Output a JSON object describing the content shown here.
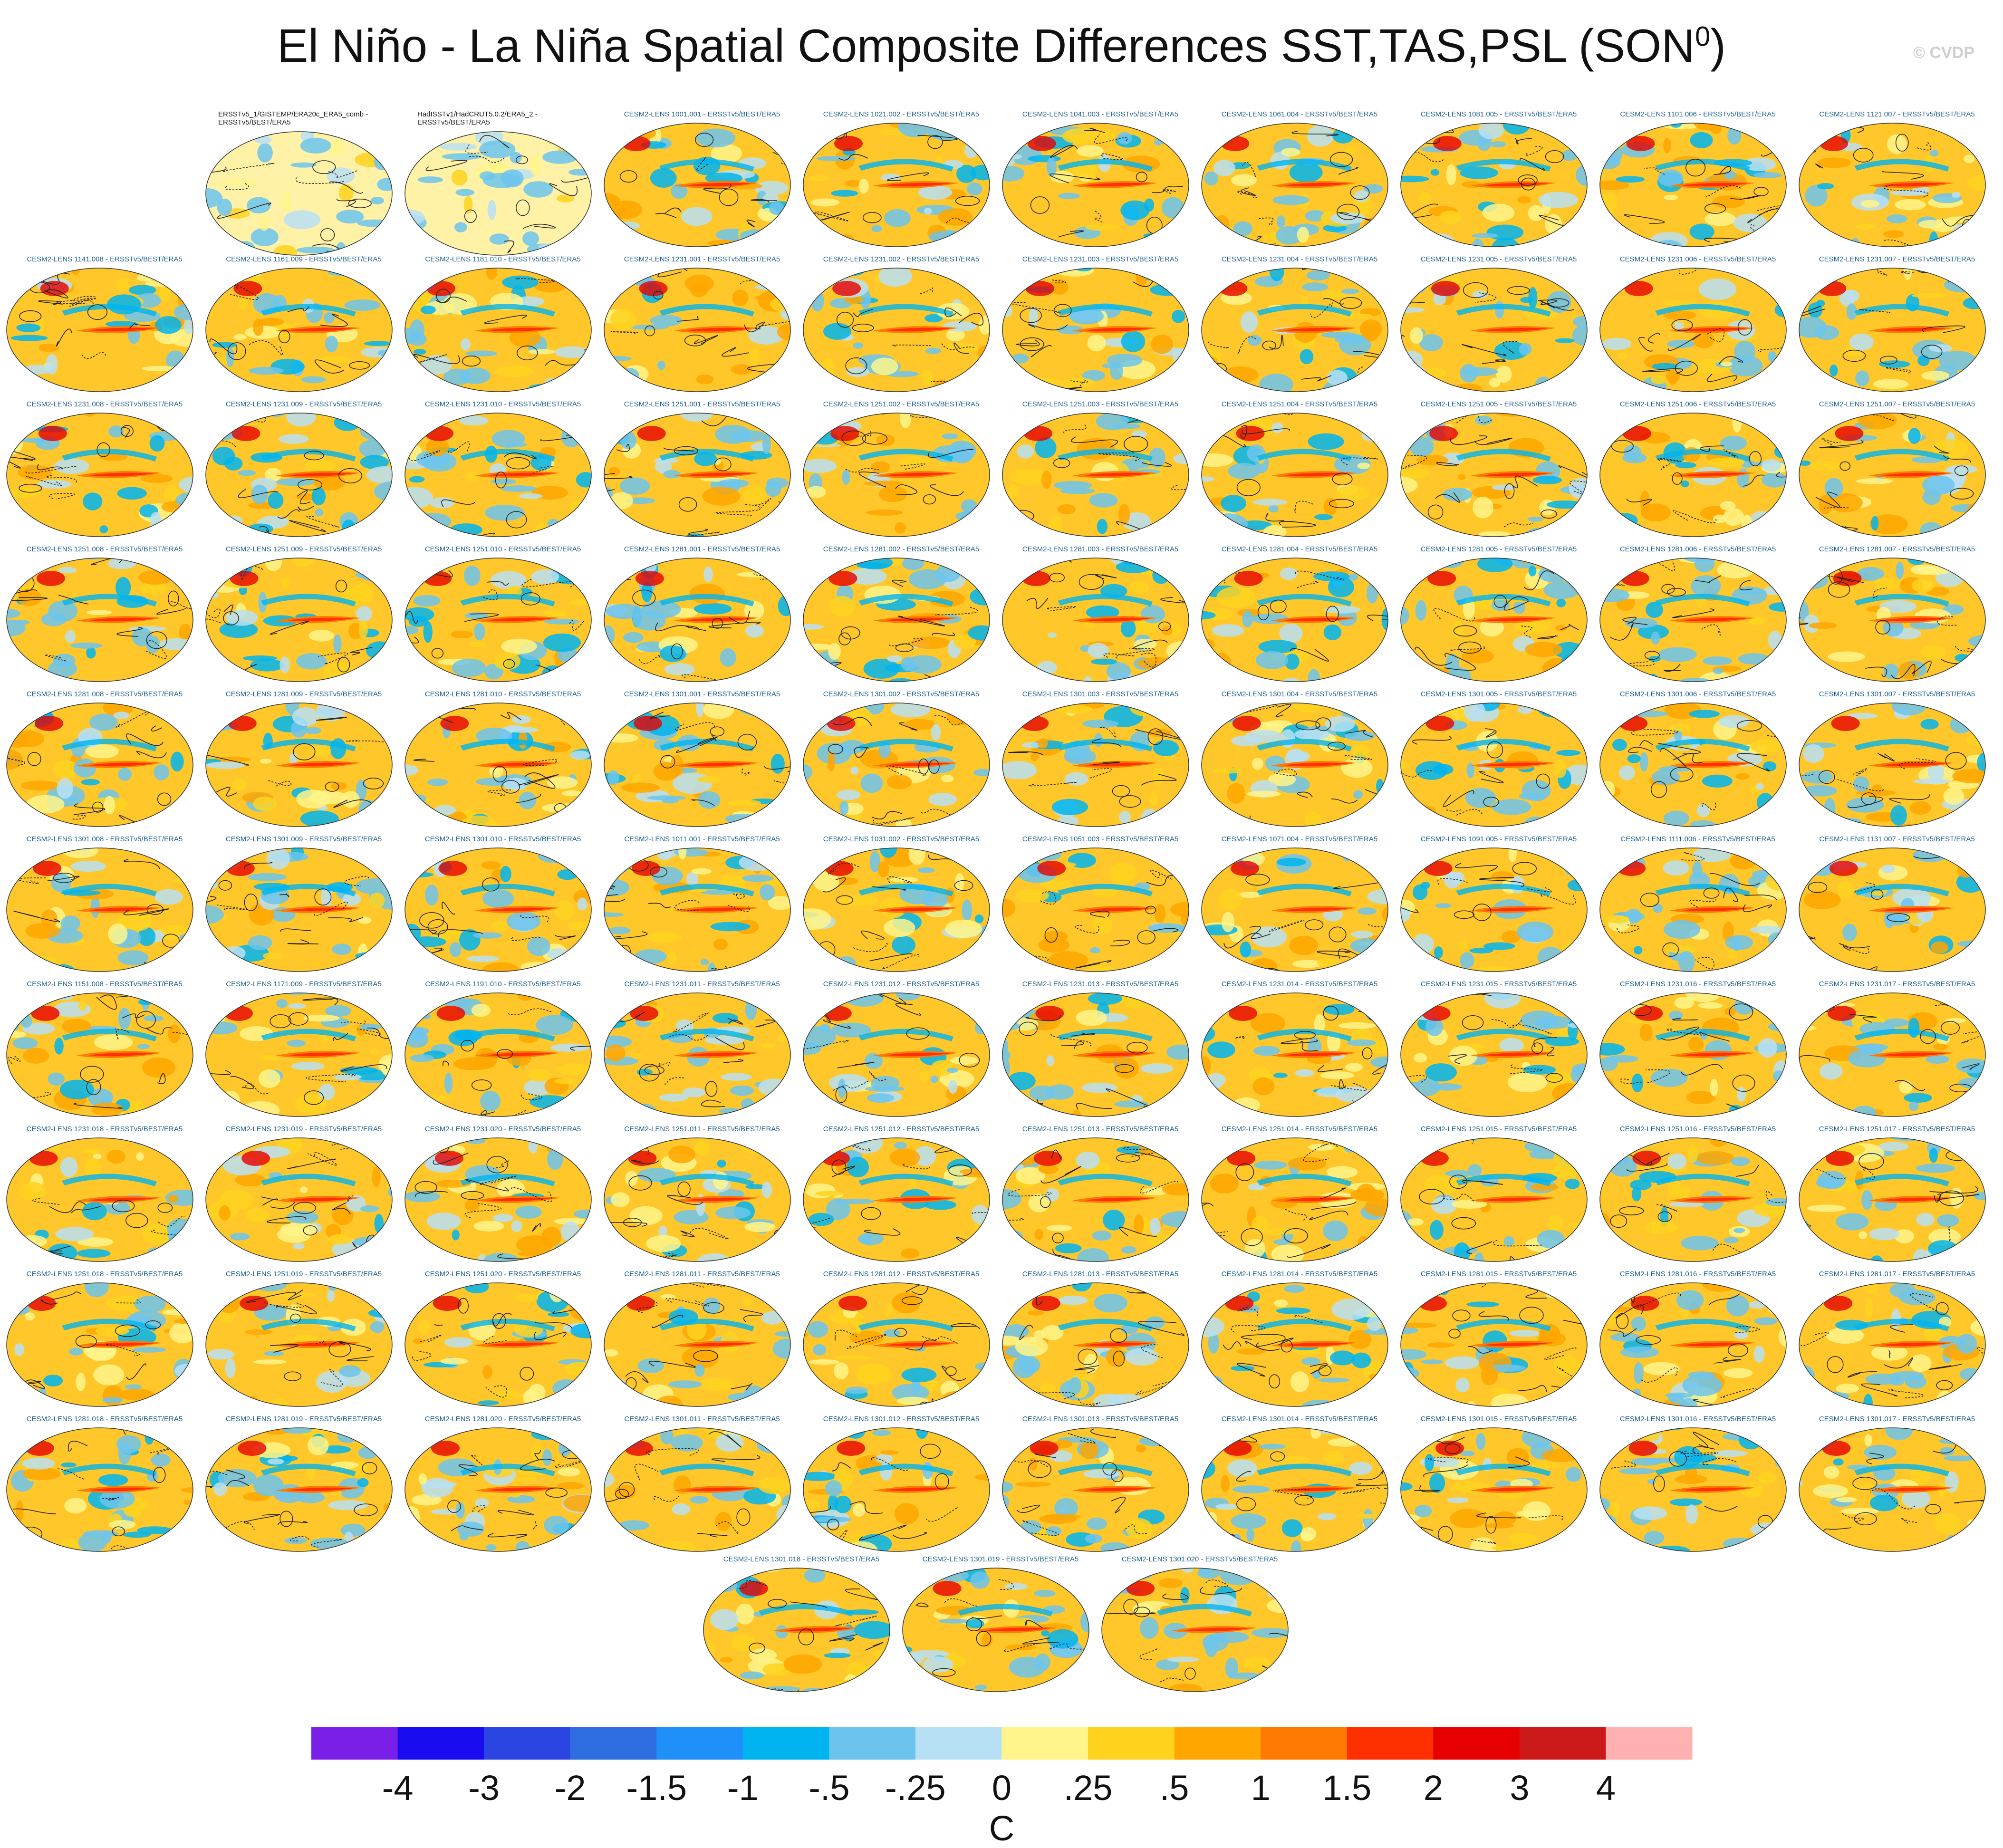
{
  "title": "El Niño - La Niña Spatial Composite Differences SST,TAS,PSL (SON",
  "title_superscript": "0",
  "title_suffix": ")",
  "watermark": "© CVDP",
  "chart_data": {
    "type": "heatmap",
    "description_units": "C",
    "colorbar": {
      "unit_label": "C",
      "tick_labels": [
        "-4",
        "-3",
        "-2",
        "-1.5",
        "-1",
        "-.5",
        "-.25",
        "0",
        ".25",
        ".5",
        "1",
        "1.5",
        "2",
        "3",
        "4"
      ],
      "colors": [
        "#7a1fe8",
        "#1a0cf0",
        "#2a45e2",
        "#2f6ee0",
        "#1e90f8",
        "#00b4f0",
        "#6cc4ee",
        "#b8e0f4",
        "#fff58a",
        "#ffd21e",
        "#ffa600",
        "#ff7a00",
        "#ff3000",
        "#e60000",
        "#cc1a1a",
        "#ffb0b0"
      ]
    },
    "panels": [
      "ERSSTv5_1/GISTEMP/ERA20c_ERA5_comb - ERSSTv5/BEST/ERA5",
      "HadISSTv1/HadCRUT5.0.2/ERA5_2 - ERSSTv5/BEST/ERA5",
      "CESM2-LENS 1001.001 - ERSSTv5/BEST/ERA5",
      "CESM2-LENS 1021.002 - ERSSTv5/BEST/ERA5",
      "CESM2-LENS 1041.003 - ERSSTv5/BEST/ERA5",
      "CESM2-LENS 1061.004 - ERSSTv5/BEST/ERA5",
      "CESM2-LENS 1081.005 - ERSSTv5/BEST/ERA5",
      "CESM2-LENS 1101.006 - ERSSTv5/BEST/ERA5",
      "CESM2-LENS 1121.007 - ERSSTv5/BEST/ERA5",
      "CESM2-LENS 1141.008 - ERSSTv5/BEST/ERA5",
      "CESM2-LENS 1161.009 - ERSSTv5/BEST/ERA5",
      "CESM2-LENS 1181.010 - ERSSTv5/BEST/ERA5",
      "CESM2-LENS 1231.001 - ERSSTv5/BEST/ERA5",
      "CESM2-LENS 1231.002 - ERSSTv5/BEST/ERA5",
      "CESM2-LENS 1231.003 - ERSSTv5/BEST/ERA5",
      "CESM2-LENS 1231.004 - ERSSTv5/BEST/ERA5",
      "CESM2-LENS 1231.005 - ERSSTv5/BEST/ERA5",
      "CESM2-LENS 1231.006 - ERSSTv5/BEST/ERA5",
      "CESM2-LENS 1231.007 - ERSSTv5/BEST/ERA5",
      "CESM2-LENS 1231.008 - ERSSTv5/BEST/ERA5",
      "CESM2-LENS 1231.009 - ERSSTv5/BEST/ERA5",
      "CESM2-LENS 1231.010 - ERSSTv5/BEST/ERA5",
      "CESM2-LENS 1251.001 - ERSSTv5/BEST/ERA5",
      "CESM2-LENS 1251.002 - ERSSTv5/BEST/ERA5",
      "CESM2-LENS 1251.003 - ERSSTv5/BEST/ERA5",
      "CESM2-LENS 1251.004 - ERSSTv5/BEST/ERA5",
      "CESM2-LENS 1251.005 - ERSSTv5/BEST/ERA5",
      "CESM2-LENS 1251.006 - ERSSTv5/BEST/ERA5",
      "CESM2-LENS 1251.007 - ERSSTv5/BEST/ERA5",
      "CESM2-LENS 1251.008 - ERSSTv5/BEST/ERA5",
      "CESM2-LENS 1251.009 - ERSSTv5/BEST/ERA5",
      "CESM2-LENS 1251.010 - ERSSTv5/BEST/ERA5",
      "CESM2-LENS 1281.001 - ERSSTv5/BEST/ERA5",
      "CESM2-LENS 1281.002 - ERSSTv5/BEST/ERA5",
      "CESM2-LENS 1281.003 - ERSSTv5/BEST/ERA5",
      "CESM2-LENS 1281.004 - ERSSTv5/BEST/ERA5",
      "CESM2-LENS 1281.005 - ERSSTv5/BEST/ERA5",
      "CESM2-LENS 1281.006 - ERSSTv5/BEST/ERA5",
      "CESM2-LENS 1281.007 - ERSSTv5/BEST/ERA5",
      "CESM2-LENS 1281.008 - ERSSTv5/BEST/ERA5",
      "CESM2-LENS 1281.009 - ERSSTv5/BEST/ERA5",
      "CESM2-LENS 1281.010 - ERSSTv5/BEST/ERA5",
      "CESM2-LENS 1301.001 - ERSSTv5/BEST/ERA5",
      "CESM2-LENS 1301.002 - ERSSTv5/BEST/ERA5",
      "CESM2-LENS 1301.003 - ERSSTv5/BEST/ERA5",
      "CESM2-LENS 1301.004 - ERSSTv5/BEST/ERA5",
      "CESM2-LENS 1301.005 - ERSSTv5/BEST/ERA5",
      "CESM2-LENS 1301.006 - ERSSTv5/BEST/ERA5",
      "CESM2-LENS 1301.007 - ERSSTv5/BEST/ERA5",
      "CESM2-LENS 1301.008 - ERSSTv5/BEST/ERA5",
      "CESM2-LENS 1301.009 - ERSSTv5/BEST/ERA5",
      "CESM2-LENS 1301.010 - ERSSTv5/BEST/ERA5",
      "CESM2-LENS 1011.001 - ERSSTv5/BEST/ERA5",
      "CESM2-LENS 1031.002 - ERSSTv5/BEST/ERA5",
      "CESM2-LENS 1051.003 - ERSSTv5/BEST/ERA5",
      "CESM2-LENS 1071.004 - ERSSTv5/BEST/ERA5",
      "CESM2-LENS 1091.005 - ERSSTv5/BEST/ERA5",
      "CESM2-LENS 1111.006 - ERSSTv5/BEST/ERA5",
      "CESM2-LENS 1131.007 - ERSSTv5/BEST/ERA5",
      "CESM2-LENS 1151.008 - ERSSTv5/BEST/ERA5",
      "CESM2-LENS 1171.009 - ERSSTv5/BEST/ERA5",
      "CESM2-LENS 1191.010 - ERSSTv5/BEST/ERA5",
      "CESM2-LENS 1231.011 - ERSSTv5/BEST/ERA5",
      "CESM2-LENS 1231.012 - ERSSTv5/BEST/ERA5",
      "CESM2-LENS 1231.013 - ERSSTv5/BEST/ERA5",
      "CESM2-LENS 1231.014 - ERSSTv5/BEST/ERA5",
      "CESM2-LENS 1231.015 - ERSSTv5/BEST/ERA5",
      "CESM2-LENS 1231.016 - ERSSTv5/BEST/ERA5",
      "CESM2-LENS 1231.017 - ERSSTv5/BEST/ERA5",
      "CESM2-LENS 1231.018 - ERSSTv5/BEST/ERA5",
      "CESM2-LENS 1231.019 - ERSSTv5/BEST/ERA5",
      "CESM2-LENS 1231.020 - ERSSTv5/BEST/ERA5",
      "CESM2-LENS 1251.011 - ERSSTv5/BEST/ERA5",
      "CESM2-LENS 1251.012 - ERSSTv5/BEST/ERA5",
      "CESM2-LENS 1251.013 - ERSSTv5/BEST/ERA5",
      "CESM2-LENS 1251.014 - ERSSTv5/BEST/ERA5",
      "CESM2-LENS 1251.015 - ERSSTv5/BEST/ERA5",
      "CESM2-LENS 1251.016 - ERSSTv5/BEST/ERA5",
      "CESM2-LENS 1251.017 - ERSSTv5/BEST/ERA5",
      "CESM2-LENS 1251.018 - ERSSTv5/BEST/ERA5",
      "CESM2-LENS 1251.019 - ERSSTv5/BEST/ERA5",
      "CESM2-LENS 1251.020 - ERSSTv5/BEST/ERA5",
      "CESM2-LENS 1281.011 - ERSSTv5/BEST/ERA5",
      "CESM2-LENS 1281.012 - ERSSTv5/BEST/ERA5",
      "CESM2-LENS 1281.013 - ERSSTv5/BEST/ERA5",
      "CESM2-LENS 1281.014 - ERSSTv5/BEST/ERA5",
      "CESM2-LENS 1281.015 - ERSSTv5/BEST/ERA5",
      "CESM2-LENS 1281.016 - ERSSTv5/BEST/ERA5",
      "CESM2-LENS 1281.017 - ERSSTv5/BEST/ERA5",
      "CESM2-LENS 1281.018 - ERSSTv5/BEST/ERA5",
      "CESM2-LENS 1281.019 - ERSSTv5/BEST/ERA5",
      "CESM2-LENS 1281.020 - ERSSTv5/BEST/ERA5",
      "CESM2-LENS 1301.011 - ERSSTv5/BEST/ERA5",
      "CESM2-LENS 1301.012 - ERSSTv5/BEST/ERA5",
      "CESM2-LENS 1301.013 - ERSSTv5/BEST/ERA5",
      "CESM2-LENS 1301.014 - ERSSTv5/BEST/ERA5",
      "CESM2-LENS 1301.015 - ERSSTv5/BEST/ERA5",
      "CESM2-LENS 1301.016 - ERSSTv5/BEST/ERA5",
      "CESM2-LENS 1301.017 - ERSSTv5/BEST/ERA5",
      "CESM2-LENS 1301.018 - ERSSTv5/BEST/ERA5",
      "CESM2-LENS 1301.019 - ERSSTv5/BEST/ERA5",
      "CESM2-LENS 1301.020 - ERSSTv5/BEST/ERA5"
    ]
  }
}
